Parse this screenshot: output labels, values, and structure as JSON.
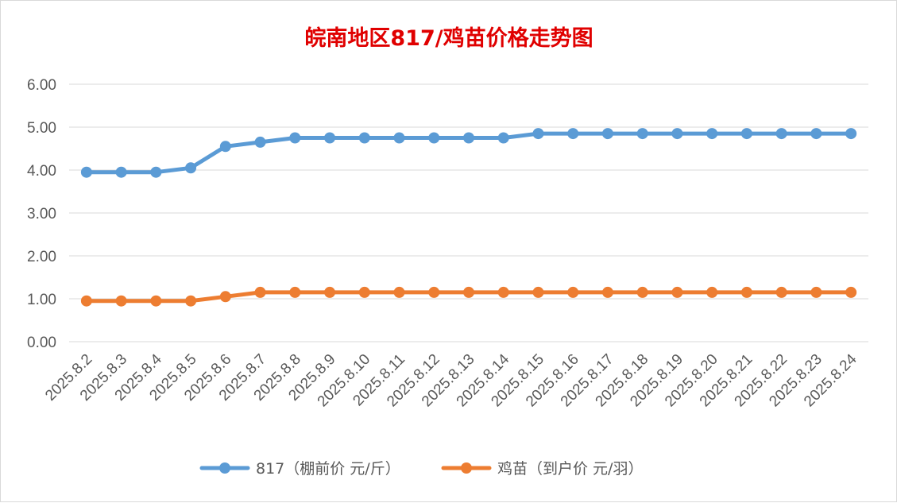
{
  "chart_data": {
    "type": "line",
    "title": "皖南地区817/鸡苗价格走势图",
    "title_color": "#e00000",
    "categories": [
      "2025.8.2",
      "2025.8.3",
      "2025.8.4",
      "2025.8.5",
      "2025.8.6",
      "2025.8.7",
      "2025.8.8",
      "2025.8.9",
      "2025.8.10",
      "2025.8.11",
      "2025.8.12",
      "2025.8.13",
      "2025.8.14",
      "2025.8.15",
      "2025.8.16",
      "2025.8.17",
      "2025.8.18",
      "2025.8.19",
      "2025.8.20",
      "2025.8.21",
      "2025.8.22",
      "2025.8.23",
      "2025.8.24"
    ],
    "series": [
      {
        "name": "817（棚前价 元/斤）",
        "color": "#5b9bd5",
        "values": [
          3.95,
          3.95,
          3.95,
          4.05,
          4.55,
          4.65,
          4.75,
          4.75,
          4.75,
          4.75,
          4.75,
          4.75,
          4.75,
          4.85,
          4.85,
          4.85,
          4.85,
          4.85,
          4.85,
          4.85,
          4.85,
          4.85,
          4.85
        ]
      },
      {
        "name": "鸡苗（到户价 元/羽）",
        "color": "#ed7d31",
        "values": [
          0.95,
          0.95,
          0.95,
          0.95,
          1.05,
          1.15,
          1.15,
          1.15,
          1.15,
          1.15,
          1.15,
          1.15,
          1.15,
          1.15,
          1.15,
          1.15,
          1.15,
          1.15,
          1.15,
          1.15,
          1.15,
          1.15,
          1.15
        ]
      }
    ],
    "y_ticks": [
      "0.00",
      "1.00",
      "2.00",
      "3.00",
      "4.00",
      "5.00",
      "6.00"
    ],
    "ylim": [
      0,
      6
    ],
    "xlabel": "",
    "ylabel": "",
    "grid": true,
    "legend_position": "bottom"
  }
}
